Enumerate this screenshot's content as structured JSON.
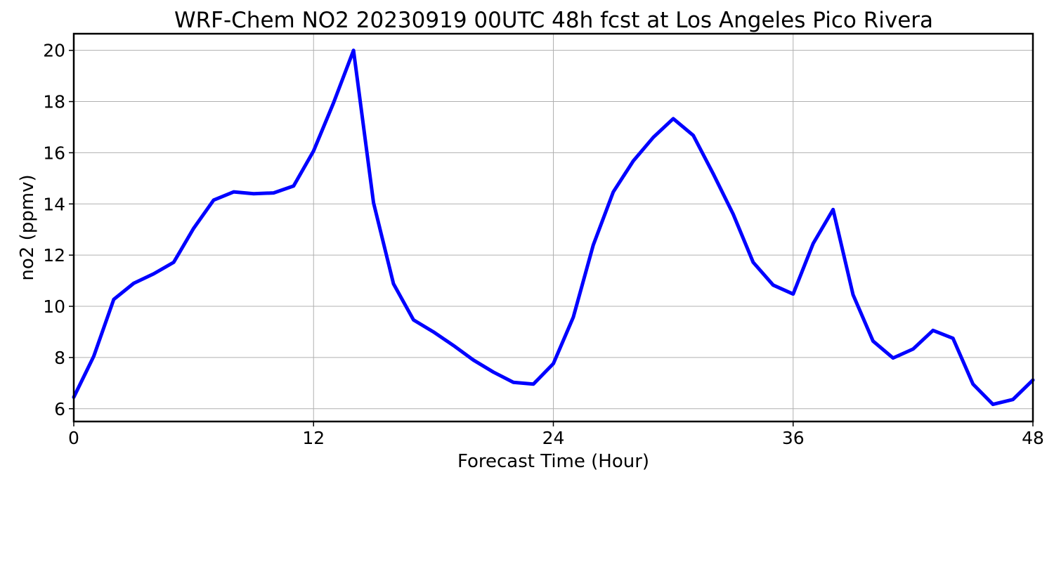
{
  "chart_data": {
    "type": "line",
    "title": "WRF-Chem NO2  20230919 00UTC 48h fcst at Los Angeles Pico Rivera",
    "xlabel": "Forecast Time (Hour)",
    "ylabel": "no2  (ppmv)",
    "xlim": [
      0,
      48
    ],
    "ylim": [
      5.5,
      20.65
    ],
    "xticks": [
      0,
      12,
      24,
      36,
      48
    ],
    "yticks": [
      6,
      8,
      10,
      12,
      14,
      16,
      18,
      20
    ],
    "grid": true,
    "series": [
      {
        "color": "#0000ff",
        "x": [
          0,
          1,
          2,
          3,
          4,
          5,
          6,
          7,
          8,
          9,
          10,
          11,
          12,
          13,
          14,
          15,
          16,
          17,
          18,
          19,
          20,
          21,
          22,
          23,
          24,
          25,
          26,
          27,
          28,
          29,
          30,
          31,
          32,
          33,
          34,
          35,
          36,
          37,
          38,
          39,
          40,
          41,
          42,
          43,
          44,
          45,
          46,
          47,
          48
        ],
        "values": [
          6.45,
          8.05,
          10.27,
          10.9,
          11.27,
          11.72,
          13.05,
          14.15,
          14.47,
          14.4,
          14.43,
          14.7,
          16.07,
          17.95,
          20.0,
          14.05,
          10.88,
          9.47,
          9.0,
          8.47,
          7.9,
          7.43,
          7.03,
          6.96,
          7.76,
          9.58,
          12.4,
          14.47,
          15.68,
          16.6,
          17.33,
          16.68,
          15.18,
          13.6,
          11.72,
          10.83,
          10.48,
          12.45,
          13.78,
          10.45,
          8.64,
          7.98,
          8.33,
          9.06,
          8.75,
          6.96,
          6.17,
          6.36,
          7.12
        ]
      }
    ]
  }
}
